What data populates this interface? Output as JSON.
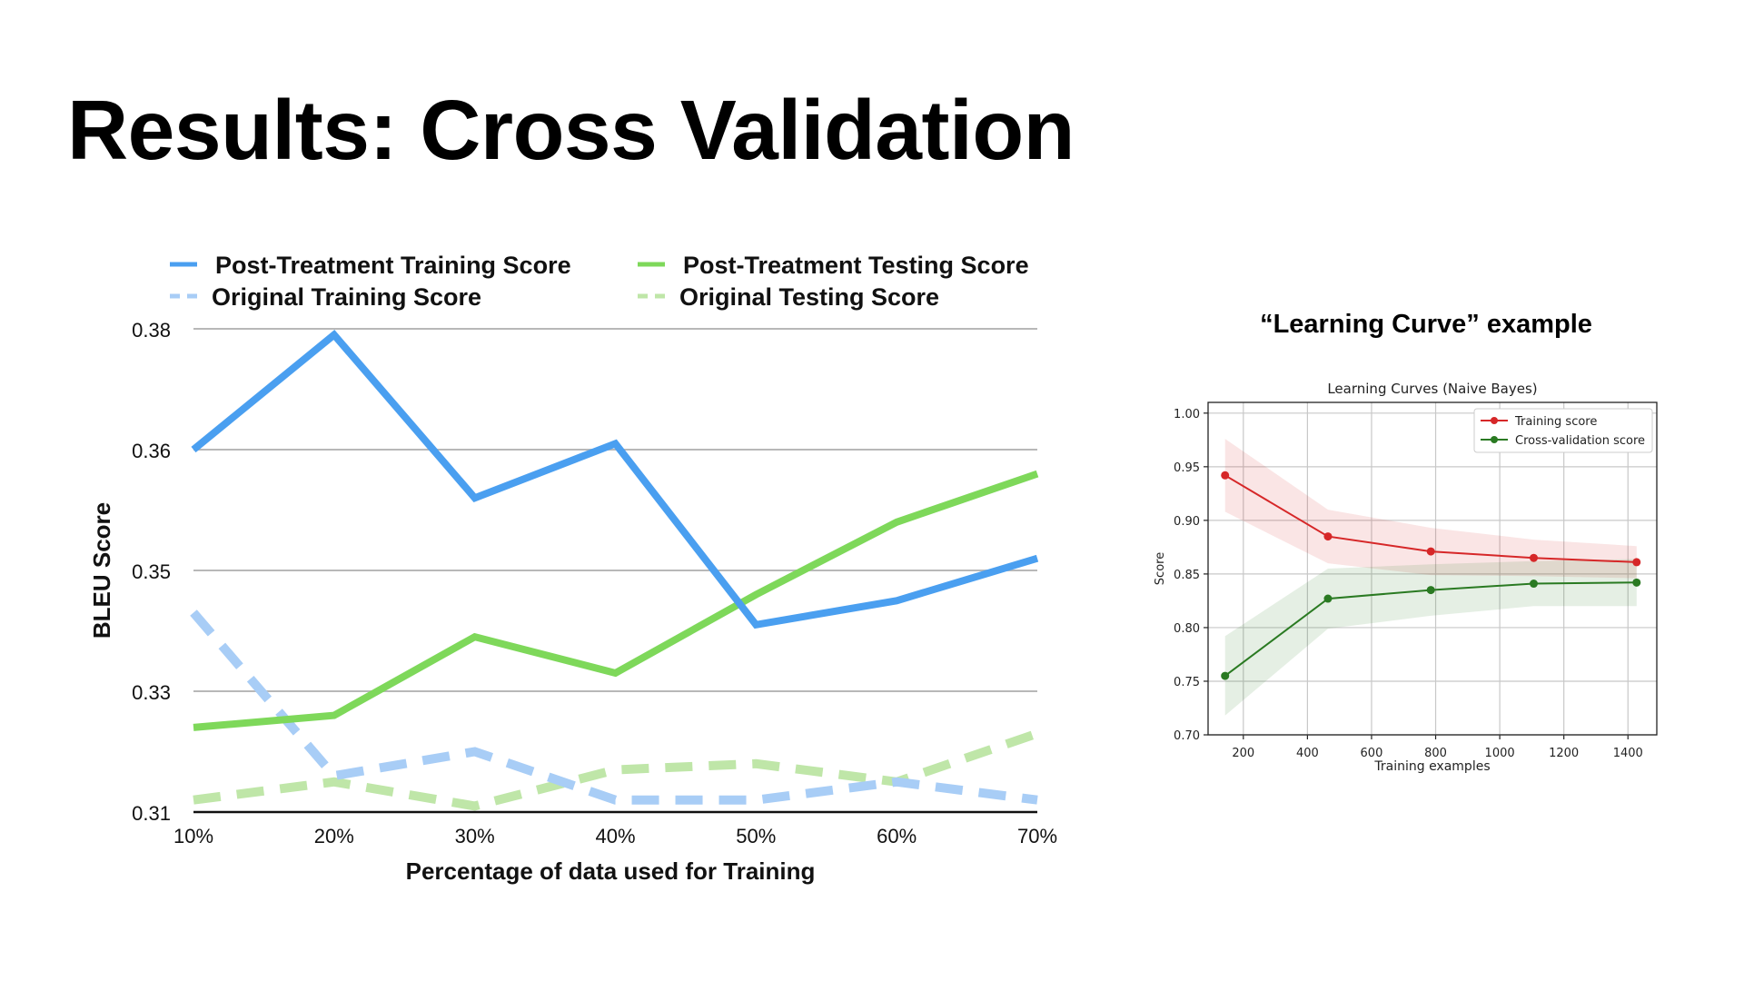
{
  "slide": {
    "title": "Results: Cross Validation",
    "caption": "“Learning Curve” example"
  },
  "chart_data": [
    {
      "type": "line",
      "title": "",
      "xlabel": "Percentage of data used for Training",
      "ylabel": "BLEU Score",
      "categories": [
        "10%",
        "20%",
        "30%",
        "40%",
        "50%",
        "60%",
        "70%"
      ],
      "ylim": [
        0.31,
        0.38
      ],
      "yticks": [
        0.31,
        0.33,
        0.35,
        0.36,
        0.38
      ],
      "ytick_positions": [
        0,
        0.25,
        0.5,
        0.75,
        1
      ],
      "series": [
        {
          "name": "Post-Treatment Training Score",
          "style": "solid",
          "color": "#4a9ff0",
          "values": [
            0.36,
            0.379,
            0.356,
            0.361,
            0.341,
            0.345,
            0.351
          ]
        },
        {
          "name": "Post-Treatment Testing Score",
          "style": "solid",
          "color": "#7ed85a",
          "values": [
            0.324,
            0.326,
            0.339,
            0.333,
            0.346,
            0.354,
            0.358
          ]
        },
        {
          "name": "Original Training Score",
          "style": "dashed",
          "color": "#a8cdf6",
          "values": [
            0.343,
            0.316,
            0.32,
            0.312,
            0.312,
            0.315,
            0.312
          ]
        },
        {
          "name": "Original Testing Score",
          "style": "dashed",
          "color": "#bfe6a8",
          "values": [
            0.312,
            0.315,
            0.311,
            0.317,
            0.318,
            0.315,
            0.323
          ]
        }
      ],
      "legend": "top",
      "grid": true
    },
    {
      "type": "line",
      "title": "Learning Curves (Naive Bayes)",
      "xlabel": "Training examples",
      "ylabel": "Score",
      "xlim": [
        90,
        1490
      ],
      "ylim": [
        0.7,
        1.01
      ],
      "xticks": [
        200,
        400,
        600,
        800,
        1000,
        1200,
        1400
      ],
      "yticks": [
        "0.70",
        "0.75",
        "0.80",
        "0.85",
        "0.90",
        "0.95",
        "1.00"
      ],
      "x": [
        143,
        464,
        785,
        1106,
        1427
      ],
      "series": [
        {
          "name": "Training score",
          "color": "#d62728",
          "values": [
            0.942,
            0.885,
            0.871,
            0.865,
            0.861
          ],
          "band_upper": [
            0.976,
            0.91,
            0.893,
            0.882,
            0.876
          ],
          "band_lower": [
            0.908,
            0.86,
            0.849,
            0.848,
            0.846
          ]
        },
        {
          "name": "Cross-validation score",
          "color": "#2a7a22",
          "values": [
            0.755,
            0.827,
            0.835,
            0.841,
            0.842
          ],
          "band_upper": [
            0.792,
            0.855,
            0.859,
            0.862,
            0.864
          ],
          "band_lower": [
            0.718,
            0.799,
            0.811,
            0.82,
            0.82
          ]
        }
      ],
      "legend": "upper right",
      "grid": true
    }
  ]
}
